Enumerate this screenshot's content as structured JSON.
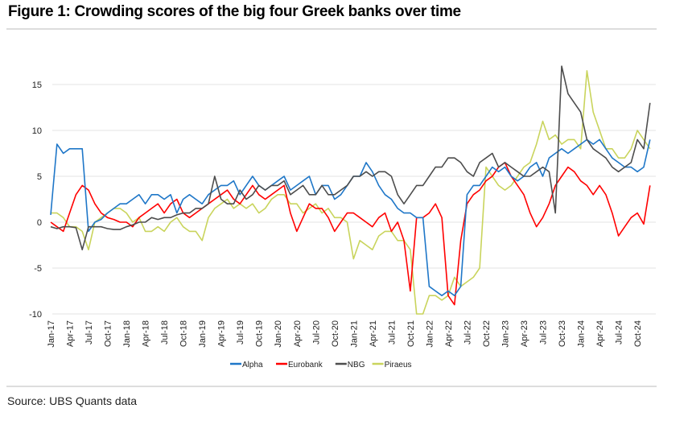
{
  "title": "Figure 1: Crowding scores of the big four Greek banks over time",
  "source": "Source: UBS Quants data",
  "chart_data": {
    "type": "line",
    "title": "Figure 1: Crowding scores of the big four Greek banks over time",
    "xlabel": "",
    "ylabel": "",
    "ylim": [
      -10,
      15
    ],
    "yticks": [
      "-10",
      "-5",
      "0",
      "5",
      "10",
      "15"
    ],
    "ytick_values": [
      -10,
      -5,
      0,
      5,
      10,
      15
    ],
    "grid": "horizontal",
    "legend_position": "bottom-center",
    "xtick_labels": [
      "Jan-17",
      "Apr-17",
      "Jul-17",
      "Oct-17",
      "Jan-18",
      "Apr-18",
      "Jul-18",
      "Oct-18",
      "Jan-19",
      "Apr-19",
      "Jul-19",
      "Oct-19",
      "Jan-20",
      "Apr-20",
      "Jul-20",
      "Oct-20",
      "Jan-21",
      "Apr-21",
      "Jul-21",
      "Oct-21",
      "Jan-22",
      "Apr-22",
      "Jul-22",
      "Oct-22",
      "Jan-23",
      "Apr-23",
      "Jul-23",
      "Oct-23",
      "Jan-24",
      "Apr-24",
      "Jul-24",
      "Oct-24"
    ],
    "x_description": "monthly, Jan-17 to Dec-24",
    "series": [
      {
        "name": "Alpha",
        "color": "#1f77c8",
        "values": [
          0.8,
          8.5,
          7.5,
          8,
          8,
          8,
          -1,
          0,
          0.3,
          1,
          1.5,
          2,
          2,
          2.5,
          3,
          2,
          3,
          3,
          2.5,
          3,
          1,
          2.5,
          3,
          2.5,
          2,
          3,
          3.5,
          4,
          4,
          4.5,
          3,
          4,
          5,
          4,
          3.5,
          4,
          4.5,
          5,
          3.5,
          4,
          4.5,
          5,
          3,
          4,
          4,
          2.5,
          3,
          4,
          5,
          5,
          6.5,
          5.5,
          4,
          3,
          2.5,
          1.5,
          1,
          1,
          0.5,
          0.5,
          -7,
          -7.5,
          -8,
          -7.5,
          -8,
          -7,
          3,
          4,
          4,
          5,
          6,
          5.5,
          6,
          5,
          4.5,
          5,
          6,
          6.5,
          5,
          7,
          7.5,
          8,
          7.5,
          8,
          8.5,
          9,
          8.5,
          9,
          8,
          7,
          6.5,
          6,
          6,
          5.5,
          6,
          9
        ]
      },
      {
        "name": "Eurobank",
        "color": "#ff0000",
        "values": [
          0,
          -0.5,
          -1,
          1,
          3,
          4,
          3.5,
          2,
          1,
          0.5,
          0.3,
          0,
          0,
          -0.5,
          0.5,
          1,
          1.5,
          2,
          1,
          2,
          2.5,
          1,
          0.5,
          1,
          1.5,
          2,
          2.5,
          3,
          3.5,
          2.5,
          2,
          3,
          4,
          3,
          2.5,
          3,
          3.5,
          4,
          1,
          -1,
          0.5,
          2,
          1.5,
          1.5,
          0.5,
          -1,
          0,
          1,
          1,
          0.5,
          0,
          -0.5,
          0.5,
          1,
          -1,
          0,
          -2,
          -7.5,
          0.5,
          0.5,
          1,
          2,
          0.5,
          -8,
          -9,
          -2,
          2,
          3,
          3.5,
          4.5,
          5,
          6,
          6.5,
          5,
          4,
          3,
          1,
          -0.5,
          0.5,
          2,
          4,
          5,
          6,
          5.5,
          4.5,
          4,
          3,
          4,
          3,
          1,
          -1.5,
          -0.5,
          0.5,
          1,
          -0.2,
          4
        ]
      },
      {
        "name": "NBG",
        "color": "#4d4d4d",
        "values": [
          -0.5,
          -0.7,
          -0.5,
          -0.5,
          -0.6,
          -3,
          -0.5,
          -0.5,
          -0.5,
          -0.7,
          -0.8,
          -0.8,
          -0.5,
          -0.3,
          0,
          0,
          0.5,
          0.3,
          0.5,
          0.5,
          0.8,
          1,
          1,
          1.5,
          1.5,
          2,
          5,
          2.5,
          2,
          2,
          3.5,
          2.5,
          3,
          4,
          3.5,
          4,
          4,
          4.5,
          3,
          3.5,
          4,
          3,
          3,
          4,
          3,
          3,
          3.5,
          4,
          5,
          5,
          5.5,
          5,
          5.5,
          5.5,
          5,
          3,
          2,
          3,
          4,
          4,
          5,
          6,
          6,
          7,
          7,
          6.5,
          5.5,
          5,
          6.5,
          7,
          7.5,
          6,
          6.5,
          6,
          5.5,
          5,
          5,
          5.5,
          6,
          5.5,
          1,
          17,
          14,
          13,
          12,
          9,
          8,
          7.5,
          7,
          6,
          5.5,
          6,
          6.5,
          9,
          8,
          13
        ]
      },
      {
        "name": "Piraeus",
        "color": "#c9d45c",
        "values": [
          1,
          1,
          0.5,
          -0.5,
          -0.5,
          -1,
          -3,
          0,
          0.5,
          1,
          1.5,
          1.5,
          1,
          0,
          0.5,
          -1,
          -1,
          -0.5,
          -1,
          0,
          0.5,
          -0.5,
          -1,
          -1,
          -2,
          0.5,
          1.5,
          2,
          2.5,
          1.5,
          2,
          1.5,
          2,
          1,
          1.5,
          2.5,
          3,
          3,
          2,
          2,
          1,
          1.5,
          2,
          1,
          1.5,
          0.5,
          0.5,
          0,
          -4,
          -2,
          -2.5,
          -3,
          -1.5,
          -1,
          -1,
          -2,
          -2,
          -3,
          -10,
          -10,
          -8,
          -8,
          -8.5,
          -8,
          -6,
          -7,
          -6.5,
          -6,
          -5,
          6,
          5,
          4,
          3.5,
          4,
          5,
          6,
          6.5,
          8.5,
          11,
          9,
          9.5,
          8.5,
          9,
          9,
          8,
          16.5,
          12,
          10,
          8,
          8,
          7,
          7,
          8,
          10,
          9,
          8
        ]
      }
    ]
  }
}
